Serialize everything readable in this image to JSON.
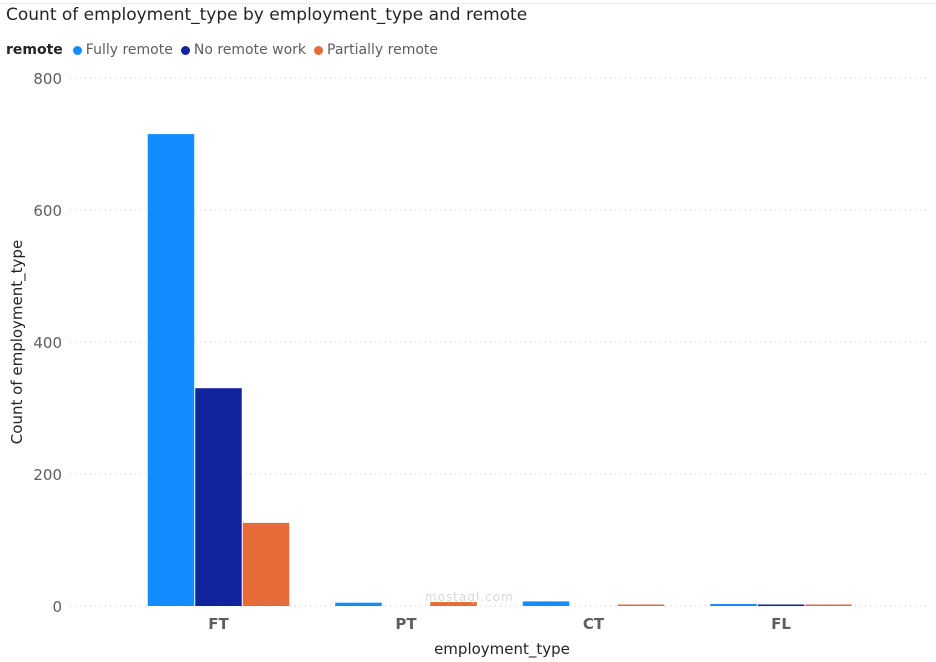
{
  "chart_data": {
    "type": "bar",
    "title": "Count of employment_type by employment_type and remote",
    "xlabel": "employment_type",
    "ylabel": "Count of employment_type",
    "legend_title": "remote",
    "legend_position": "top-left",
    "categories": [
      "FT",
      "PT",
      "CT",
      "FL"
    ],
    "series": [
      {
        "name": "Fully remote",
        "color": "#118dff",
        "values": [
          715,
          5,
          7,
          3
        ]
      },
      {
        "name": "No remote work",
        "color": "#12239e",
        "values": [
          330,
          0,
          0,
          1
        ]
      },
      {
        "name": "Partially remote",
        "color": "#e66c37",
        "values": [
          126,
          6,
          1,
          1
        ]
      }
    ],
    "y_ticks": [
      0,
      200,
      400,
      600,
      800
    ],
    "ylim": [
      0,
      800
    ],
    "grid": true
  },
  "watermark": "mostaql.com"
}
